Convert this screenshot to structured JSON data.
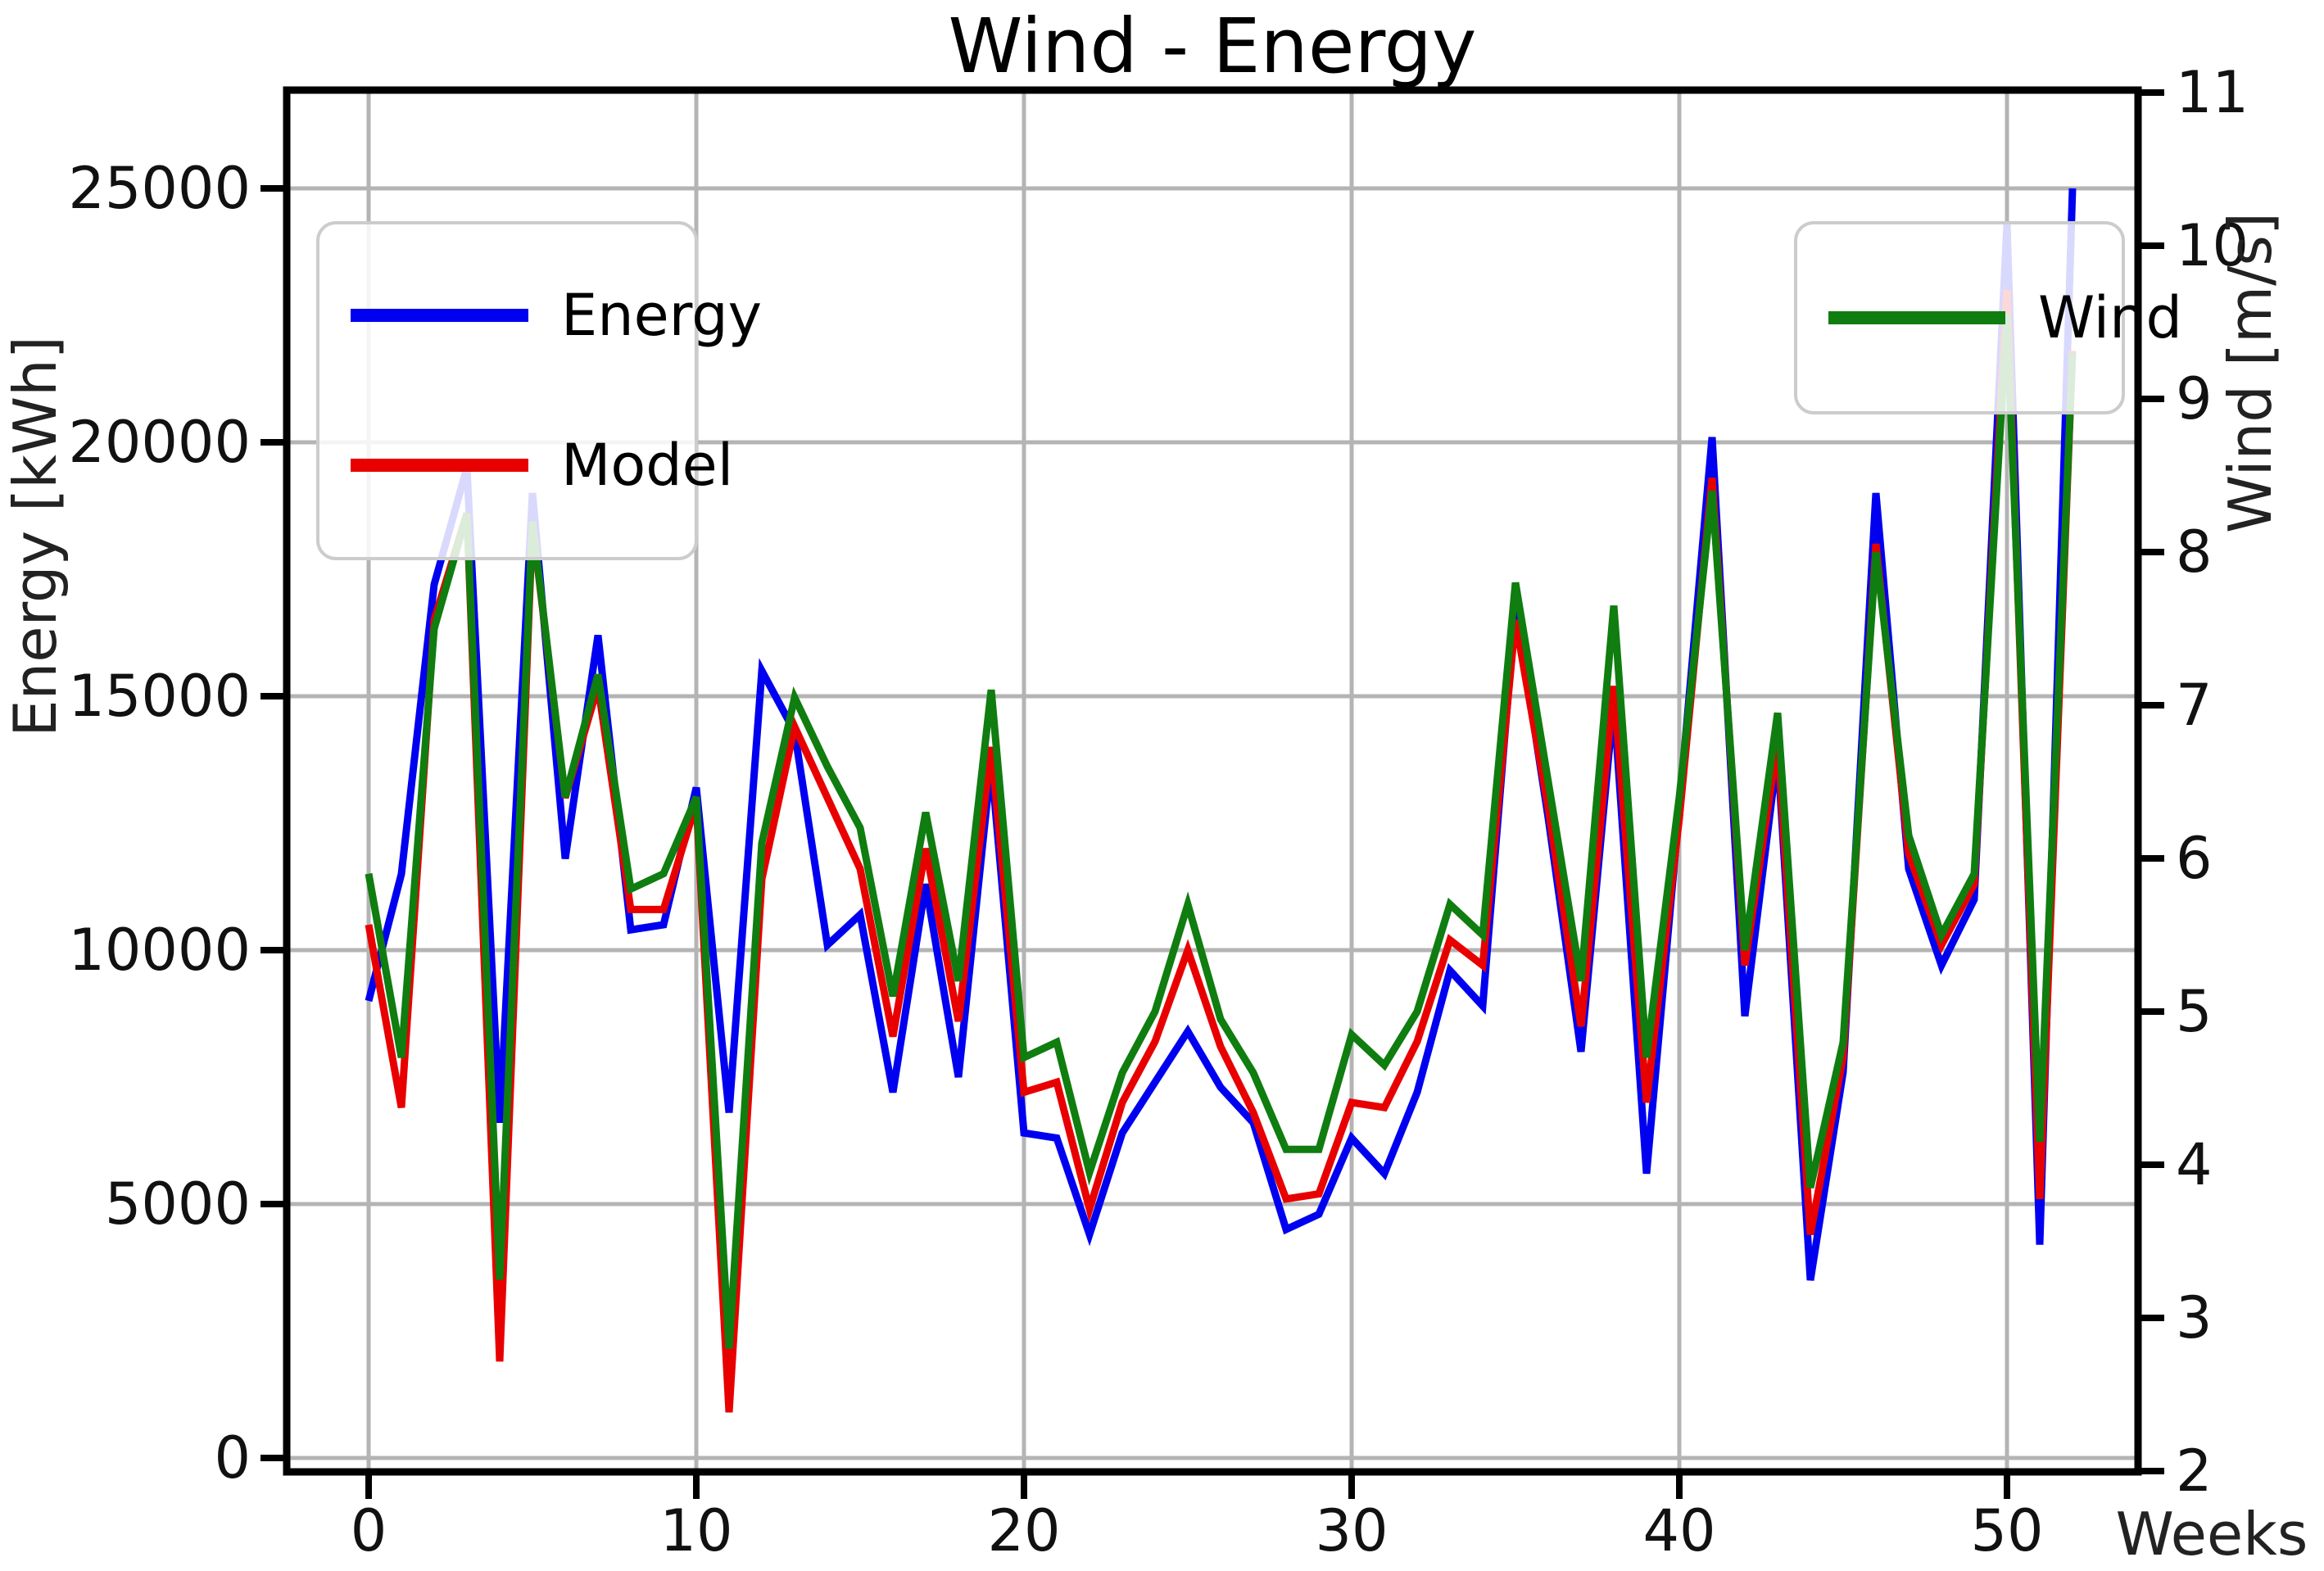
{
  "title": "Wind - Energy",
  "axes": {
    "x": {
      "label": "Weeks",
      "ticks": [
        0,
        10,
        20,
        30,
        40,
        50
      ]
    },
    "y_left": {
      "label": "Energy [kWh]",
      "ticks": [
        0,
        5000,
        10000,
        15000,
        20000,
        25000
      ]
    },
    "y_right": {
      "label": "Wind [m/s]",
      "ticks": [
        2,
        3,
        4,
        5,
        6,
        7,
        8,
        9,
        10,
        11
      ]
    }
  },
  "legend": {
    "left": {
      "entries": [
        {
          "label": "Energy"
        },
        {
          "label": "Model"
        }
      ]
    },
    "right": {
      "entries": [
        {
          "label": "Wind"
        }
      ]
    }
  },
  "chart_data": {
    "type": "line",
    "title": "Wind - Energy",
    "xlabel": "Weeks",
    "ylabel_left": "Energy [kWh]",
    "ylabel_right": "Wind [m/s]",
    "grid": true,
    "xlim": [
      -2.2,
      53.9
    ],
    "ylim_left": [
      0,
      26900
    ],
    "ylim_right": [
      2,
      11
    ],
    "x": [
      0,
      1,
      2,
      3,
      4,
      5,
      6,
      7,
      8,
      9,
      10,
      11,
      12,
      13,
      14,
      15,
      16,
      17,
      18,
      19,
      20,
      21,
      22,
      23,
      24,
      25,
      26,
      27,
      28,
      29,
      30,
      31,
      32,
      33,
      34,
      35,
      36,
      37,
      38,
      39,
      40,
      41,
      42,
      43,
      44,
      45,
      46,
      47,
      48,
      49,
      50,
      51,
      52
    ],
    "series": [
      {
        "name": "Energy",
        "axis": "left",
        "color": "#0000f0",
        "values": [
          9000,
          11500,
          17200,
          19500,
          6600,
          19000,
          11800,
          16200,
          10400,
          10500,
          13200,
          6800,
          15500,
          14300,
          10100,
          10700,
          7200,
          11300,
          7500,
          13700,
          6400,
          6300,
          4400,
          6400,
          7400,
          8400,
          7300,
          6600,
          4500,
          4800,
          6300,
          5600,
          7200,
          9600,
          8900,
          16800,
          12600,
          8000,
          14900,
          5600,
          12800,
          20100,
          8700,
          13900,
          3500,
          7600,
          19000,
          11600,
          9700,
          11000,
          24300,
          4200,
          25000
        ]
      },
      {
        "name": "Model",
        "axis": "left",
        "color": "#e80000",
        "values": [
          10500,
          6900,
          16500,
          18600,
          1900,
          18400,
          13000,
          15200,
          10800,
          10800,
          12900,
          900,
          11400,
          14400,
          13000,
          11600,
          8300,
          12000,
          8600,
          14000,
          7200,
          7400,
          4900,
          7000,
          8200,
          10000,
          8100,
          6800,
          5100,
          5200,
          7000,
          6900,
          8200,
          10200,
          9700,
          16500,
          12800,
          8500,
          15200,
          7000,
          12600,
          19300,
          9700,
          14100,
          4400,
          7900,
          18000,
          11900,
          10100,
          11300,
          23000,
          5100,
          21800
        ]
      },
      {
        "name": "Wind",
        "axis": "right",
        "color": "#0f7d0f",
        "values": [
          5.9,
          4.7,
          7.5,
          8.25,
          3.25,
          8.2,
          6.4,
          7.2,
          5.8,
          5.9,
          6.4,
          2.8,
          6.1,
          7.05,
          6.6,
          6.2,
          5.1,
          6.3,
          5.2,
          7.1,
          4.7,
          4.8,
          3.95,
          4.6,
          5.0,
          5.7,
          4.95,
          4.6,
          4.1,
          4.1,
          4.85,
          4.65,
          5.0,
          5.7,
          5.5,
          7.8,
          6.5,
          5.2,
          7.65,
          4.7,
          6.4,
          8.4,
          5.4,
          6.95,
          3.85,
          4.8,
          8.0,
          6.15,
          5.5,
          5.9,
          9.55,
          4.15,
          9.3
        ]
      }
    ]
  }
}
